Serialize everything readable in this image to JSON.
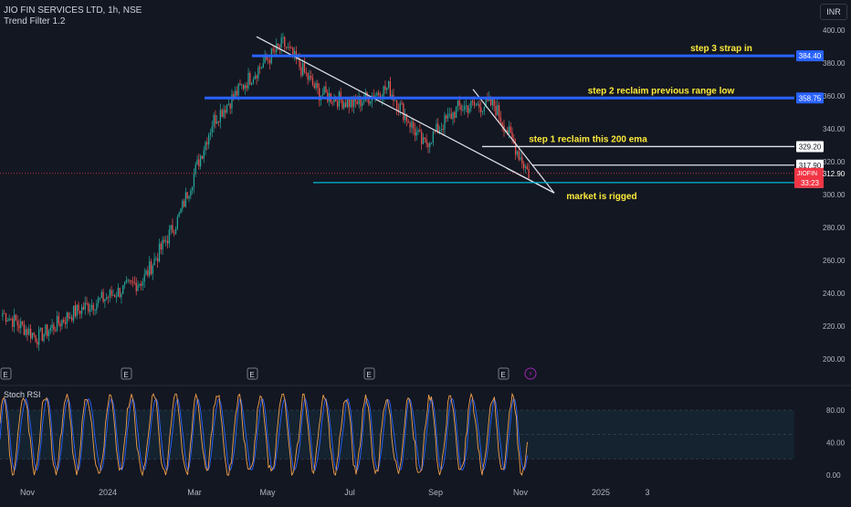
{
  "header": {
    "symbol_line": "JIO FIN SERVICES LTD, 1h, NSE",
    "indicator_line": "Trend Filter 1.2"
  },
  "currency_button": "INR",
  "stoch_title": "Stoch RSI",
  "colors": {
    "background": "#131722",
    "up_candle": "#26a69a",
    "down_candle": "#ef5350",
    "level_blue": "#2962ff",
    "level_cyan": "#00bcd4",
    "annotation_yellow": "#ffeb3b",
    "stoch_k": "#f0a04b",
    "stoch_d": "#2962ff",
    "price_badge_red": "#f23645"
  },
  "chart_data": [
    {
      "type": "candlestick",
      "title": "JIO FIN SERVICES LTD, 1h, NSE",
      "y_ticks": [
        400,
        380,
        360,
        340,
        320,
        300,
        280,
        260,
        240,
        220,
        200
      ],
      "x_ticks": [
        "Nov",
        "2024",
        "Mar",
        "May",
        "Jul",
        "Sep",
        "Nov",
        "2025",
        "3"
      ],
      "ylim": [
        193,
        401
      ],
      "approx_path": [
        {
          "t": "Oct 2023",
          "close": 228
        },
        {
          "t": "Nov",
          "close": 213
        },
        {
          "t": "Dec",
          "close": 228
        },
        {
          "t": "2024",
          "close": 238
        },
        {
          "t": "Jan mid",
          "close": 248
        },
        {
          "t": "Feb",
          "close": 285
        },
        {
          "t": "Mar",
          "close": 345
        },
        {
          "t": "Apr",
          "close": 370
        },
        {
          "t": "late Apr",
          "close": 392
        },
        {
          "t": "May",
          "close": 362
        },
        {
          "t": "Jun",
          "close": 355
        },
        {
          "t": "Jul",
          "close": 365
        },
        {
          "t": "Aug",
          "close": 330
        },
        {
          "t": "Sep",
          "close": 353
        },
        {
          "t": "Oct",
          "close": 355
        },
        {
          "t": "late Oct",
          "close": 312.9
        }
      ],
      "last_price": "312.90",
      "last_price_label": "JIOFIN",
      "countdown": "33:23",
      "price_levels": [
        {
          "value": 384.4,
          "label": "384.40",
          "color": "blue",
          "text": "step 3 strap in"
        },
        {
          "value": 358.75,
          "label": "358.75",
          "color": "blue",
          "text": "step 2 reclaim previous range low"
        },
        {
          "value": 329.2,
          "label": "329.20",
          "color": "white",
          "text": "step 1 reclaim this 200 ema"
        },
        {
          "value": 317.9,
          "label": "317.90",
          "color": "white",
          "text": ""
        },
        {
          "value": 307.3,
          "label": "307.30",
          "color": "cyan",
          "text": ""
        }
      ],
      "annotations": [
        "market is rigged"
      ],
      "earnings_markers": [
        "E",
        "E",
        "E",
        "E",
        "E"
      ]
    },
    {
      "type": "line",
      "title": "Stoch RSI",
      "y_ticks": [
        80.0,
        40.0,
        0.0
      ],
      "ylim": [
        0,
        100
      ],
      "bands": [
        20,
        50,
        80
      ],
      "series": []
    }
  ]
}
